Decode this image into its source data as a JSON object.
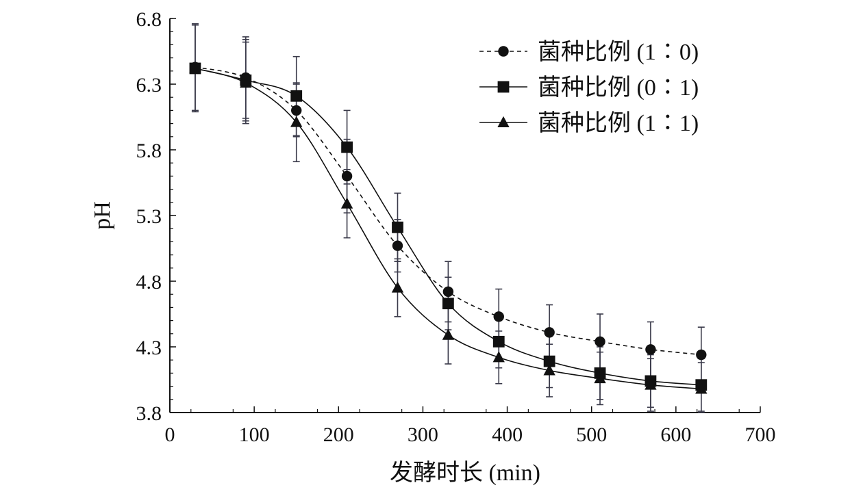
{
  "chart_data": {
    "type": "line",
    "title": "",
    "xlabel": "发酵时长 (min)",
    "ylabel": "pH",
    "xlim": [
      0,
      700
    ],
    "ylim": [
      3.8,
      6.8
    ],
    "xticks": [
      "0",
      "100",
      "200",
      "300",
      "400",
      "500",
      "600",
      "700"
    ],
    "yticks": [
      "3.8",
      "4.3",
      "4.8",
      "5.3",
      "5.8",
      "6.3",
      "6.8"
    ],
    "grid": false,
    "legend_position": "top-right",
    "x": [
      30,
      90,
      150,
      210,
      270,
      330,
      390,
      450,
      510,
      570,
      630
    ],
    "series": [
      {
        "name": "菌种比例 (1∶0)",
        "marker": "circle",
        "dash": true,
        "values": [
          6.43,
          6.35,
          6.1,
          5.6,
          5.07,
          4.72,
          4.53,
          4.41,
          4.34,
          4.28,
          4.24
        ],
        "errors": [
          0.33,
          0.31,
          0.2,
          0.28,
          0.2,
          0.23,
          0.21,
          0.21,
          0.21,
          0.21,
          0.21
        ]
      },
      {
        "name": "菌种比例 (0∶1)",
        "marker": "square",
        "dash": false,
        "values": [
          6.42,
          6.33,
          6.21,
          5.82,
          5.21,
          4.63,
          4.34,
          4.19,
          4.1,
          4.04,
          4.01
        ],
        "errors": [
          0.33,
          0.31,
          0.3,
          0.28,
          0.26,
          0.2,
          0.2,
          0.2,
          0.2,
          0.2,
          0.2
        ]
      },
      {
        "name": "菌种比例 (1∶1)",
        "marker": "triangle",
        "dash": false,
        "values": [
          6.42,
          6.31,
          6.01,
          5.39,
          4.75,
          4.39,
          4.22,
          4.12,
          4.06,
          4.01,
          3.98
        ],
        "errors": [
          0.33,
          0.31,
          0.3,
          0.26,
          0.22,
          0.22,
          0.2,
          0.2,
          0.2,
          0.2,
          0.2
        ]
      }
    ]
  }
}
